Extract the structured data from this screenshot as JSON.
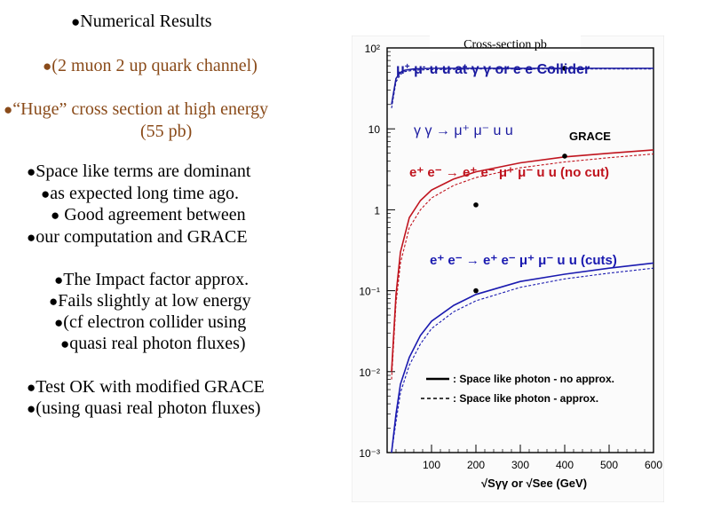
{
  "slide": {
    "bullet_symbol": "●",
    "heading": "Numerical Results",
    "channel": "(2 muon 2 up quark channel)",
    "huge_line1": "“Huge” cross section at high energy",
    "huge_line2": "(55 pb)",
    "space_1": "Space like terms are dominant",
    "space_2": "as expected long time ago.",
    "space_3": " Good agreement between",
    "space_4": "our computation and  GRACE",
    "impact_1": "The Impact factor approx.",
    "impact_2": "Fails slightly at low energy",
    "impact_3": "(cf electron collider using",
    "impact_4": "quasi real photon fluxes)",
    "test_1": "Test OK with modified GRACE",
    "test_2": "(using quasi real photon fluxes)"
  },
  "figure": {
    "ylabel": "Cross-section pb",
    "title_mu": "μ",
    "title_rest": " u u  at  γ γ or  e e  Collider",
    "label_gg": "γ γ →  μ⁺ μ⁻ u u",
    "label_grace": "GRACE",
    "label_nocut": "e⁺ e⁻  → e⁺ e⁻  μ⁺ μ⁻ u u  (no cut)",
    "label_cuts": "e⁺ e⁻  → e⁺ e⁻ μ⁺ μ⁻ u u (cuts)",
    "legend_solid": ": Space like photon - no approx.",
    "legend_dashed": ": Space like photon -  approx.",
    "xaxis_label": "√Sγγ  or √See  (GeV)",
    "ytick_labels": [
      "10²",
      "10",
      "1",
      "10⁻¹",
      "10⁻²",
      "10⁻³"
    ],
    "xtick_labels": [
      "100",
      "200",
      "300",
      "400",
      "500",
      "600"
    ]
  },
  "chart_data": {
    "type": "line",
    "xlim": [
      0,
      600
    ],
    "ylim": [
      0.001,
      100
    ],
    "yscale": "log",
    "xticks": [
      100,
      200,
      300,
      400,
      500,
      600
    ],
    "yticks": [
      100,
      10,
      1,
      0.1,
      0.01,
      0.001
    ],
    "colors": {
      "gg": "#1a1aa0",
      "nocut": "#c0141e",
      "cuts": "#1a1ab0"
    },
    "series": [
      {
        "name": "γ γ → μ⁺ μ⁻ u u",
        "style": "solid",
        "x": [
          10,
          20,
          30,
          40,
          60,
          100,
          200,
          300,
          400,
          500,
          600
        ],
        "y": [
          20,
          42,
          50,
          53,
          55,
          56,
          56,
          56,
          56,
          56,
          56
        ]
      },
      {
        "name": "γ γ → μ⁺ μ⁻ u u",
        "style": "dashed",
        "x": [
          10,
          20,
          30,
          40,
          60,
          100,
          200,
          300,
          400,
          500,
          600
        ],
        "y": [
          18,
          38,
          47,
          51,
          53,
          54,
          55,
          55,
          55,
          55,
          55
        ]
      },
      {
        "name": "e⁺ e⁻ → e⁺ e⁻ μ⁺ μ⁻ u u (no cut)",
        "style": "solid",
        "x": [
          10,
          20,
          30,
          50,
          75,
          100,
          150,
          200,
          300,
          400,
          500,
          600
        ],
        "y": [
          0.01,
          0.09,
          0.3,
          0.8,
          1.3,
          1.75,
          2.4,
          2.95,
          3.8,
          4.5,
          5.0,
          5.5
        ]
      },
      {
        "name": "e⁺ e⁻ → e⁺ e⁻ μ⁺ μ⁻ u u (no cut)",
        "style": "dashed",
        "x": [
          10,
          20,
          30,
          50,
          75,
          100,
          150,
          200,
          300,
          400,
          500,
          600
        ],
        "y": [
          0.008,
          0.07,
          0.22,
          0.6,
          1.0,
          1.4,
          2.0,
          2.5,
          3.3,
          3.9,
          4.4,
          4.9
        ]
      },
      {
        "name": "e⁺ e⁻ → e⁺ e⁻ μ⁺ μ⁻ u u (cuts)",
        "style": "solid",
        "x": [
          10,
          20,
          30,
          50,
          75,
          100,
          150,
          200,
          300,
          400,
          500,
          600
        ],
        "y": [
          0.0009,
          0.003,
          0.007,
          0.015,
          0.028,
          0.042,
          0.066,
          0.09,
          0.13,
          0.16,
          0.19,
          0.22
        ]
      },
      {
        "name": "e⁺ e⁻ → e⁺ e⁻ μ⁺ μ⁻ u u (cuts)",
        "style": "dashed",
        "x": [
          10,
          20,
          30,
          50,
          75,
          100,
          150,
          200,
          300,
          400,
          500,
          600
        ],
        "y": [
          0.0007,
          0.0024,
          0.0055,
          0.012,
          0.022,
          0.034,
          0.055,
          0.075,
          0.11,
          0.14,
          0.165,
          0.19
        ]
      }
    ],
    "points": [
      {
        "name": "GRACE",
        "x": 400,
        "y": 56
      },
      {
        "name": "GRACE",
        "x": 400,
        "y": 4.6
      },
      {
        "name": "GRACE",
        "x": 200,
        "y": 1.15
      },
      {
        "name": "GRACE",
        "x": 200,
        "y": 0.1
      }
    ]
  }
}
